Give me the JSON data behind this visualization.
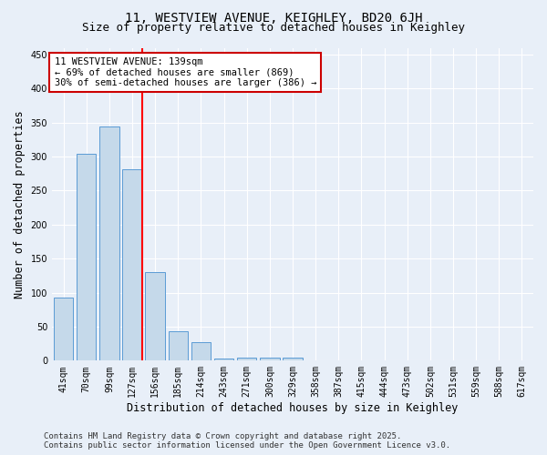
{
  "title": "11, WESTVIEW AVENUE, KEIGHLEY, BD20 6JH",
  "subtitle": "Size of property relative to detached houses in Keighley",
  "xlabel": "Distribution of detached houses by size in Keighley",
  "ylabel": "Number of detached properties",
  "categories": [
    "41sqm",
    "70sqm",
    "99sqm",
    "127sqm",
    "156sqm",
    "185sqm",
    "214sqm",
    "243sqm",
    "271sqm",
    "300sqm",
    "329sqm",
    "358sqm",
    "387sqm",
    "415sqm",
    "444sqm",
    "473sqm",
    "502sqm",
    "531sqm",
    "559sqm",
    "588sqm",
    "617sqm"
  ],
  "values": [
    93,
    304,
    344,
    282,
    130,
    43,
    27,
    3,
    5,
    4,
    4,
    0,
    1,
    0,
    0,
    1,
    0,
    0,
    0,
    0,
    1
  ],
  "bar_color": "#c5d9ea",
  "bar_edge_color": "#5b9bd5",
  "red_line_index": 3,
  "annotation_text": "11 WESTVIEW AVENUE: 139sqm\n← 69% of detached houses are smaller (869)\n30% of semi-detached houses are larger (386) →",
  "annotation_box_color": "#ffffff",
  "annotation_box_edge": "#cc0000",
  "ylim": [
    0,
    460
  ],
  "yticks": [
    0,
    50,
    100,
    150,
    200,
    250,
    300,
    350,
    400,
    450
  ],
  "footer_line1": "Contains HM Land Registry data © Crown copyright and database right 2025.",
  "footer_line2": "Contains public sector information licensed under the Open Government Licence v3.0.",
  "bg_color": "#e8eff8",
  "plot_bg_color": "#e8eff8",
  "grid_color": "#ffffff",
  "title_fontsize": 10,
  "subtitle_fontsize": 9,
  "xlabel_fontsize": 8.5,
  "ylabel_fontsize": 8.5,
  "tick_fontsize": 7,
  "annotation_fontsize": 7.5,
  "footer_fontsize": 6.5
}
